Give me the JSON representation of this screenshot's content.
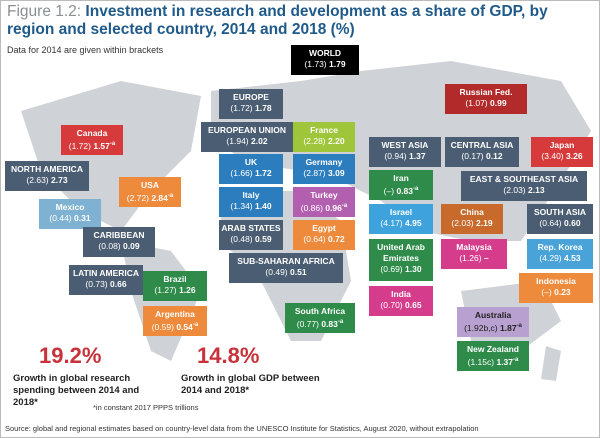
{
  "header": {
    "figure_label": "Figure 1.2:",
    "title": "Investment in research and development as a share of GDP, by region and selected country, 2014 and 2018 (%)",
    "subtitle": "Data for 2014 are given within brackets"
  },
  "regions": [
    {
      "name": "WORLD",
      "y2014": "(1.73)",
      "y2018": "1.79"
    },
    {
      "name": "Russian Fed.",
      "y2014": "(1.07)",
      "y2018": "0.99"
    },
    {
      "name": "EUROPE",
      "y2014": "(1.72)",
      "y2018": "1.78"
    },
    {
      "name": "EUROPEAN UNION",
      "y2014": "(1.94)",
      "y2018": "2.02"
    },
    {
      "name": "France",
      "y2014": "(2.28)",
      "y2018": "2.20"
    },
    {
      "name": "Canada",
      "y2014": "(1.72)",
      "y2018": "1.57",
      "note": "-a"
    },
    {
      "name": "WEST ASIA",
      "y2014": "(0.94)",
      "y2018": "1.37"
    },
    {
      "name": "CENTRAL ASIA",
      "y2014": "(0.17)",
      "y2018": "0.12"
    },
    {
      "name": "Japan",
      "y2014": "(3.40)",
      "y2018": "3.26"
    },
    {
      "name": "UK",
      "y2014": "(1.66)",
      "y2018": "1.72"
    },
    {
      "name": "Germany",
      "y2014": "(2.87)",
      "y2018": "3.09"
    },
    {
      "name": "NORTH AMERICA",
      "y2014": "(2.63)",
      "y2018": "2.73"
    },
    {
      "name": "Iran",
      "y2014": "(–)",
      "y2018": "0.83",
      "note": "-a"
    },
    {
      "name": "EAST & SOUTHEAST ASIA",
      "y2014": "(2.03)",
      "y2018": "2.13"
    },
    {
      "name": "USA",
      "y2014": "(2.72)",
      "y2018": "2.84",
      "note": "-a"
    },
    {
      "name": "Italy",
      "y2014": "(1.34)",
      "y2018": "1.40"
    },
    {
      "name": "Turkey",
      "y2014": "(0.86)",
      "y2018": "0.96",
      "note": "-a"
    },
    {
      "name": "Mexico",
      "y2014": "(0.44)",
      "y2018": "0.31"
    },
    {
      "name": "Israel",
      "y2014": "(4.17)",
      "y2018": "4.95"
    },
    {
      "name": "China",
      "y2014": "(2.03)",
      "y2018": "2.19"
    },
    {
      "name": "SOUTH ASIA",
      "y2014": "(0.64)",
      "y2018": "0.60"
    },
    {
      "name": "ARAB STATES",
      "y2014": "(0.48)",
      "y2018": "0.59"
    },
    {
      "name": "Egypt",
      "y2014": "(0.64)",
      "y2018": "0.72"
    },
    {
      "name": "CARIBBEAN",
      "y2014": "(0.08)",
      "y2018": "0.09"
    },
    {
      "name": "United Arab Emirates",
      "y2014": "(0.69)",
      "y2018": "1.30"
    },
    {
      "name": "Malaysia",
      "y2014": "(1.26)",
      "y2018": "–"
    },
    {
      "name": "Rep. Korea",
      "y2014": "(4.29)",
      "y2018": "4.53"
    },
    {
      "name": "SUB-SAHARAN AFRICA",
      "y2014": "(0.49)",
      "y2018": "0.51"
    },
    {
      "name": "LATIN AMERICA",
      "y2014": "(0.73)",
      "y2018": "0.66"
    },
    {
      "name": "Brazil",
      "y2014": "(1.27)",
      "y2018": "1.26"
    },
    {
      "name": "Indonesia",
      "y2014": "(–)",
      "y2018": "0.23"
    },
    {
      "name": "India",
      "y2014": "(0.70)",
      "y2018": "0.65"
    },
    {
      "name": "Argentina",
      "y2014": "(0.59)",
      "y2018": "0.54",
      "note": "-a"
    },
    {
      "name": "South Africa",
      "y2014": "(0.77)",
      "y2018": "0.83",
      "note": "-a"
    },
    {
      "name": "Australia",
      "y2014": "(1.92b,c)",
      "y2018": "1.87",
      "note": "-a"
    },
    {
      "name": "New Zealand",
      "y2014": "(1.15c)",
      "y2018": "1.37",
      "note": "-a"
    }
  ],
  "highlights": [
    {
      "value": "19.2%",
      "caption": "Growth in global research spending between 2014 and 2018*"
    },
    {
      "value": "14.8%",
      "caption": "Growth in global GDP between 2014 and 2018*"
    }
  ],
  "footnote": "*in constant 2017 PPPS trillions",
  "source": "Source: global and regional estimates based on country-level data from the UNESCO Institute for Statistics, August 2020, without extrapolation"
}
